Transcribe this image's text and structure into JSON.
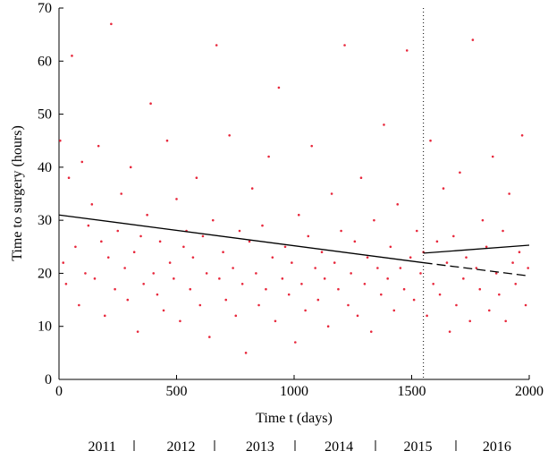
{
  "chart_data": {
    "type": "scatter",
    "xlabel": "Time t (days)",
    "ylabel": "Time to surgery (hours)",
    "xlim": [
      0,
      2000
    ],
    "ylim": [
      0,
      70
    ],
    "xticks": [
      0,
      500,
      1000,
      1500,
      2000
    ],
    "yticks": [
      0,
      10,
      20,
      30,
      40,
      50,
      60,
      70
    ],
    "color": "#e8283c",
    "year_labels": [
      "2011",
      "2012",
      "2013",
      "2014",
      "2015",
      "2016"
    ],
    "x": [
      5,
      18,
      30,
      42,
      55,
      70,
      85,
      98,
      112,
      125,
      140,
      152,
      168,
      180,
      195,
      210,
      222,
      238,
      250,
      265,
      280,
      292,
      305,
      320,
      335,
      348,
      360,
      375,
      390,
      402,
      418,
      430,
      445,
      460,
      472,
      488,
      500,
      515,
      530,
      542,
      558,
      570,
      585,
      600,
      612,
      628,
      640,
      655,
      670,
      682,
      698,
      710,
      725,
      740,
      752,
      768,
      780,
      795,
      810,
      822,
      838,
      850,
      865,
      880,
      892,
      908,
      920,
      935,
      950,
      962,
      978,
      990,
      1005,
      1020,
      1032,
      1048,
      1060,
      1075,
      1090,
      1102,
      1118,
      1130,
      1145,
      1160,
      1172,
      1188,
      1200,
      1215,
      1230,
      1242,
      1258,
      1270,
      1285,
      1300,
      1312,
      1328,
      1340,
      1355,
      1370,
      1382,
      1398,
      1410,
      1425,
      1440,
      1452,
      1468,
      1480,
      1495,
      1510,
      1522,
      1538,
      1550,
      1565,
      1580,
      1592,
      1608,
      1620,
      1635,
      1650,
      1662,
      1678,
      1690,
      1705,
      1720,
      1732,
      1748,
      1760,
      1775,
      1790,
      1802,
      1818,
      1830,
      1845,
      1860,
      1872,
      1888,
      1900,
      1915,
      1930,
      1942,
      1958,
      1970,
      1985,
      1995
    ],
    "y": [
      45,
      22,
      18,
      38,
      61,
      25,
      14,
      41,
      20,
      29,
      33,
      19,
      44,
      26,
      12,
      23,
      67,
      17,
      28,
      35,
      21,
      15,
      40,
      24,
      9,
      27,
      18,
      31,
      52,
      20,
      16,
      26,
      13,
      45,
      22,
      19,
      34,
      11,
      25,
      28,
      17,
      23,
      38,
      14,
      27,
      20,
      8,
      30,
      63,
      19,
      24,
      15,
      46,
      21,
      12,
      28,
      18,
      5,
      26,
      36,
      20,
      14,
      29,
      17,
      42,
      23,
      11,
      55,
      19,
      25,
      16,
      22,
      7,
      31,
      18,
      13,
      27,
      44,
      21,
      15,
      24,
      19,
      10,
      35,
      22,
      17,
      28,
      63,
      14,
      20,
      26,
      12,
      38,
      18,
      23,
      9,
      30,
      21,
      16,
      48,
      19,
      25,
      13,
      33,
      21,
      17,
      62,
      23,
      15,
      28,
      20,
      24,
      12,
      45,
      18,
      26,
      16,
      36,
      22,
      9,
      27,
      14,
      39,
      19,
      23,
      11,
      64,
      21,
      17,
      30,
      25,
      13,
      42,
      20,
      16,
      28,
      11,
      35,
      22,
      18,
      24,
      46,
      14,
      21
    ],
    "lines": [
      {
        "x": [
          0,
          1550
        ],
        "y": [
          31,
          22
        ],
        "style": "solid"
      },
      {
        "x": [
          1550,
          2000
        ],
        "y": [
          23.8,
          25.3
        ],
        "style": "solid"
      },
      {
        "x": [
          1550,
          2000
        ],
        "y": [
          22,
          19.5
        ],
        "style": "dashed"
      }
    ],
    "vline": 1550
  }
}
